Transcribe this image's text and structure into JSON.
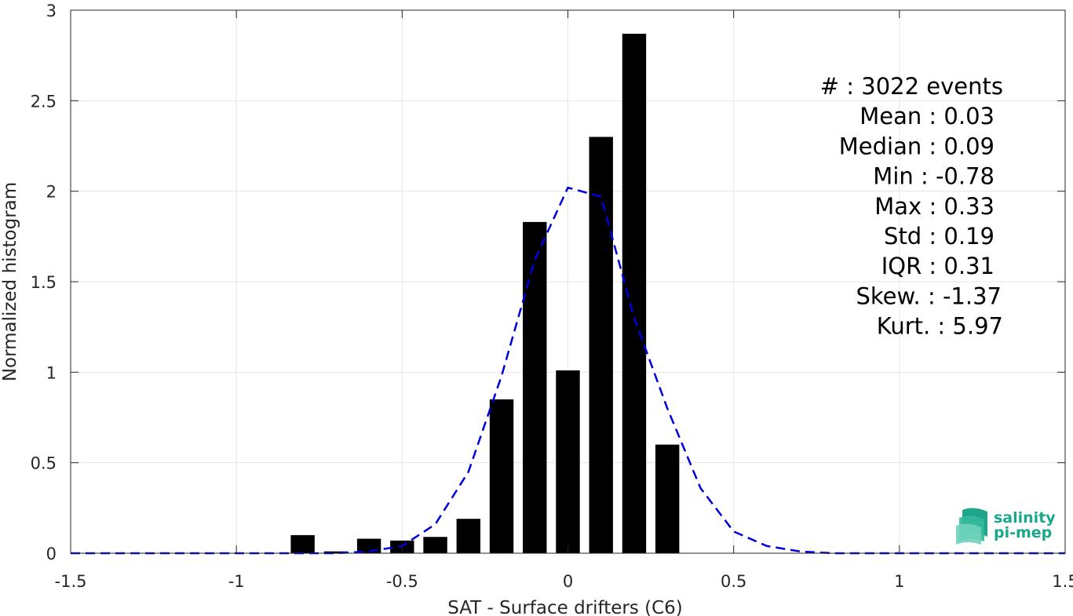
{
  "chart_data": {
    "type": "bar",
    "xlabel": "SAT - Surface drifters (C6)",
    "ylabel": "Normalized histogram",
    "xlim": [
      -1.5,
      1.5
    ],
    "ylim": [
      0,
      3
    ],
    "xticks": [
      -1.5,
      -1,
      -0.5,
      0,
      0.5,
      1,
      1.5
    ],
    "xtick_labels": [
      "-1.5",
      "-1",
      "-0.5",
      "0",
      "0.5",
      "1",
      "1.5"
    ],
    "yticks": [
      0,
      0.5,
      1,
      1.5,
      2,
      2.5,
      3
    ],
    "ytick_labels": [
      "0",
      "0.5",
      "1",
      "1.5",
      "2",
      "2.5",
      "3"
    ],
    "grid": true,
    "bar_color": "#000000",
    "fit_color": "#0000dd",
    "bins": [
      -0.8,
      -0.7,
      -0.6,
      -0.5,
      -0.4,
      -0.3,
      -0.2,
      -0.1,
      0.0,
      0.1,
      0.2,
      0.3
    ],
    "values": [
      0.1,
      0.01,
      0.08,
      0.07,
      0.09,
      0.19,
      0.85,
      1.83,
      1.01,
      2.3,
      2.87,
      0.6
    ],
    "fit_curve": {
      "style": "dashed",
      "x": [
        -1.5,
        -1.4,
        -1.3,
        -1.2,
        -1.1,
        -1.0,
        -0.9,
        -0.8,
        -0.7,
        -0.6,
        -0.5,
        -0.4,
        -0.3,
        -0.2,
        -0.1,
        0.0,
        0.1,
        0.2,
        0.3,
        0.4,
        0.5,
        0.6,
        0.7,
        0.8,
        0.9,
        1.0,
        1.1,
        1.2,
        1.3,
        1.4,
        1.5
      ],
      "y": [
        0,
        0,
        0,
        0,
        0,
        0,
        0,
        0,
        0,
        0.01,
        0.04,
        0.16,
        0.45,
        0.98,
        1.62,
        2.02,
        1.97,
        1.3,
        0.8,
        0.36,
        0.12,
        0.04,
        0.01,
        0,
        0,
        0,
        0,
        0,
        0,
        0,
        0
      ]
    },
    "annotation": {
      "position": "top-right",
      "lines": [
        "#  : 3022 events",
        "Mean : 0.03",
        "Median : 0.09",
        "Min : -0.78",
        "Max : 0.33",
        "Std : 0.19",
        "IQR : 0.31",
        "Skew. : -1.37",
        "Kurt. : 5.97"
      ]
    }
  },
  "logo": {
    "line1": "salinity",
    "line2": "pi-mep",
    "color": "#1aa88c"
  }
}
